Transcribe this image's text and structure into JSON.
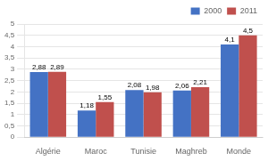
{
  "chart_data": {
    "type": "bar",
    "categories": [
      "Algérie",
      "Maroc",
      "Tunisie",
      "Maghreb",
      "Monde"
    ],
    "series": [
      {
        "name": "2000",
        "color": "#4472C4",
        "values": [
          2.88,
          1.18,
          2.08,
          2.06,
          4.1
        ],
        "value_labels": [
          "2,88",
          "1,18",
          "2,08",
          "2,06",
          "4,1"
        ]
      },
      {
        "name": "2011",
        "color": "#C0504D",
        "values": [
          2.89,
          1.55,
          1.98,
          2.21,
          4.5
        ],
        "value_labels": [
          "2,89",
          "1,55",
          "1,98",
          "2,21",
          "4,5"
        ]
      }
    ],
    "ylim": [
      0,
      5
    ],
    "yticks": [
      0,
      {
        "value": 0.5,
        "label": "0,5"
      },
      1,
      {
        "value": 1.5,
        "label": "1,5"
      },
      2,
      {
        "value": 2.5,
        "label": "2,5"
      },
      3,
      {
        "value": 3.5,
        "label": "3,5"
      },
      4,
      {
        "value": 4.5,
        "label": "4,5"
      },
      5
    ],
    "grid": true,
    "legend": "upper right",
    "data_labels": true
  }
}
